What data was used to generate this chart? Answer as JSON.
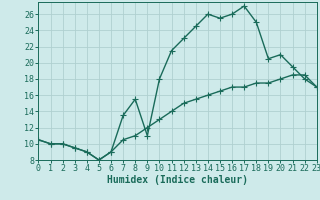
{
  "xlabel": "Humidex (Indice chaleur)",
  "ylabel": "",
  "bg_color": "#ceeaea",
  "line_color": "#1a6b5a",
  "grid_color": "#b0d0d0",
  "curve1_x": [
    0,
    1,
    2,
    3,
    4,
    5,
    6,
    7,
    8,
    9,
    10,
    11,
    12,
    13,
    14,
    15,
    16,
    17,
    18,
    19,
    20,
    21,
    22,
    23
  ],
  "curve1_y": [
    10.5,
    10.0,
    10.0,
    9.5,
    9.0,
    8.0,
    9.0,
    13.5,
    15.5,
    11.0,
    18.0,
    21.5,
    23.0,
    24.5,
    26.0,
    25.5,
    26.0,
    27.0,
    25.0,
    20.5,
    21.0,
    19.5,
    18.0,
    17.0
  ],
  "curve2_x": [
    0,
    1,
    2,
    3,
    4,
    5,
    6,
    7,
    8,
    9,
    10,
    11,
    12,
    13,
    14,
    15,
    16,
    17,
    18,
    19,
    20,
    21,
    22,
    23
  ],
  "curve2_y": [
    10.5,
    10.0,
    10.0,
    9.5,
    9.0,
    8.0,
    9.0,
    10.5,
    11.0,
    12.0,
    13.0,
    14.0,
    15.0,
    15.5,
    16.0,
    16.5,
    17.0,
    17.0,
    17.5,
    17.5,
    18.0,
    18.5,
    18.5,
    17.0
  ],
  "xlim": [
    0,
    23
  ],
  "ylim": [
    8,
    27.5
  ],
  "yticks": [
    8,
    10,
    12,
    14,
    16,
    18,
    20,
    22,
    24,
    26
  ],
  "xticks": [
    0,
    1,
    2,
    3,
    4,
    5,
    6,
    7,
    8,
    9,
    10,
    11,
    12,
    13,
    14,
    15,
    16,
    17,
    18,
    19,
    20,
    21,
    22,
    23
  ],
  "marker": "+",
  "markersize": 4,
  "linewidth": 1.0,
  "xlabel_fontsize": 7,
  "tick_fontsize": 6
}
